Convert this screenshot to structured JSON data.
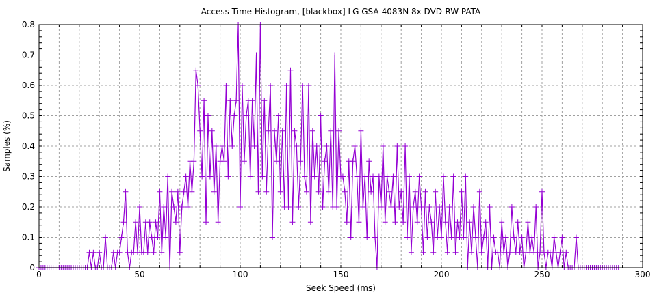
{
  "chart_data": {
    "type": "line",
    "title": "Access Time Histogram, [blackbox] LG GSA-4083N 8x DVD-RW PATA",
    "xlabel": "Seek Speed (ms)",
    "ylabel": "Samples (%)",
    "xlim": [
      0,
      300
    ],
    "ylim": [
      0,
      0.8
    ],
    "xticks": [
      0,
      50,
      100,
      150,
      200,
      250,
      300
    ],
    "yticks": [
      0,
      0.1,
      0.2,
      0.3,
      0.4,
      0.5,
      0.6,
      0.7,
      0.8
    ],
    "grid": true,
    "marker": "plus",
    "color": "#9400d3",
    "x_start": 0,
    "x_step": 1,
    "values": [
      0,
      0,
      0,
      0,
      0,
      0,
      0,
      0,
      0,
      0,
      0,
      0,
      0,
      0,
      0,
      0,
      0,
      0,
      0,
      0,
      0,
      0,
      0,
      0,
      0,
      0.05,
      0,
      0.05,
      0,
      0,
      0.05,
      0,
      0,
      0.1,
      0,
      0,
      0,
      0.05,
      0,
      0.05,
      0.05,
      0.1,
      0.15,
      0.25,
      0.05,
      0,
      0.05,
      0.05,
      0.15,
      0.05,
      0.2,
      0.05,
      0.05,
      0.15,
      0.05,
      0.15,
      0.1,
      0.05,
      0.15,
      0.1,
      0.25,
      0.05,
      0.2,
      0.1,
      0.3,
      0,
      0.25,
      0.2,
      0.15,
      0.25,
      0.05,
      0.2,
      0.25,
      0.3,
      0.2,
      0.35,
      0.25,
      0.35,
      0.65,
      0.6,
      0.45,
      0.3,
      0.55,
      0.15,
      0.5,
      0.3,
      0.45,
      0.25,
      0.4,
      0.15,
      0.35,
      0.4,
      0.35,
      0.6,
      0.3,
      0.55,
      0.4,
      0.5,
      0.55,
      0.8,
      0.2,
      0.6,
      0.35,
      0.5,
      0.55,
      0.3,
      0.55,
      0.4,
      0.7,
      0.25,
      0.8,
      0.3,
      0.55,
      0.25,
      0.45,
      0.6,
      0.1,
      0.45,
      0.35,
      0.5,
      0.25,
      0.45,
      0.2,
      0.6,
      0.2,
      0.65,
      0.15,
      0.45,
      0.4,
      0.2,
      0.35,
      0.6,
      0.3,
      0.25,
      0.6,
      0.15,
      0.45,
      0.3,
      0.4,
      0.25,
      0.5,
      0.2,
      0.35,
      0.4,
      0.25,
      0.45,
      0.2,
      0.7,
      0.2,
      0.45,
      0.3,
      0.3,
      0.25,
      0.15,
      0.35,
      0.1,
      0.35,
      0.4,
      0.3,
      0.15,
      0.45,
      0.2,
      0.3,
      0.1,
      0.35,
      0.25,
      0.3,
      0.1,
      0,
      0.3,
      0.2,
      0.4,
      0.15,
      0.3,
      0.25,
      0.2,
      0.3,
      0.15,
      0.4,
      0.2,
      0.25,
      0.15,
      0.4,
      0.1,
      0.3,
      0.05,
      0.2,
      0.25,
      0.15,
      0.3,
      0.2,
      0.05,
      0.25,
      0.1,
      0.2,
      0.15,
      0.05,
      0.25,
      0.1,
      0.2,
      0.1,
      0.3,
      0.15,
      0.05,
      0.2,
      0.1,
      0.3,
      0.05,
      0.15,
      0.1,
      0.25,
      0.1,
      0.3,
      0,
      0.15,
      0.05,
      0.2,
      0.1,
      0,
      0.25,
      0.05,
      0.1,
      0.15,
      0,
      0.2,
      0,
      0.1,
      0.05,
      0.05,
      0,
      0.15,
      0.05,
      0.1,
      0,
      0.05,
      0.2,
      0.1,
      0.05,
      0.15,
      0.05,
      0.1,
      0,
      0.05,
      0.15,
      0.05,
      0.1,
      0.05,
      0.2,
      0,
      0.05,
      0.25,
      0.05,
      0,
      0.05,
      0.05,
      0,
      0.1,
      0.05,
      0,
      0.05,
      0.1,
      0,
      0.05,
      0,
      0,
      0,
      0,
      0.1,
      0,
      0,
      0,
      0,
      0,
      0,
      0,
      0,
      0,
      0,
      0,
      0,
      0,
      0,
      0,
      0,
      0,
      0,
      0,
      0,
      0
    ]
  }
}
